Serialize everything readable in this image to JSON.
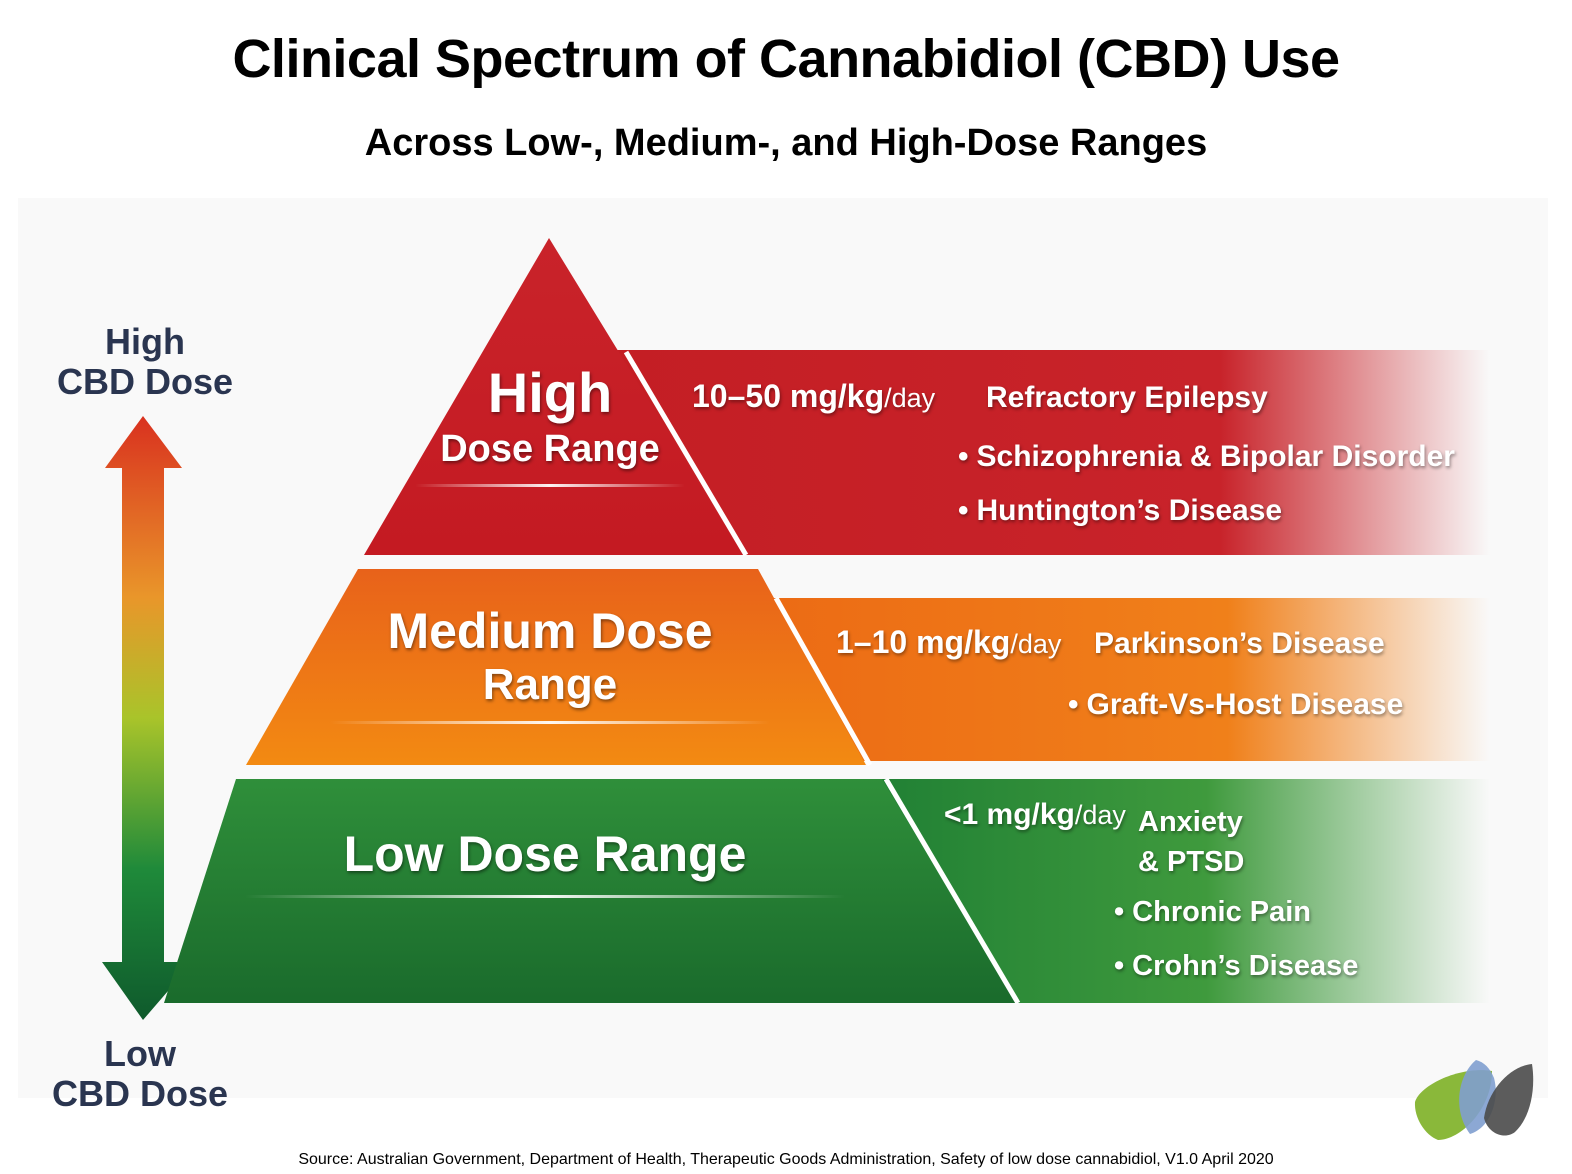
{
  "header": {
    "title": "Clinical Spectrum of Cannabidiol (CBD) Use",
    "subtitle": "Across Low-, Medium-, and High-Dose Ranges"
  },
  "axis": {
    "top_line1": "High",
    "top_line2": "CBD Dose",
    "bottom_line1": "Low",
    "bottom_line2": "CBD Dose",
    "arrow_colors": [
      "#d9311f",
      "#e9962a",
      "#a9c42a",
      "#1f8a3a",
      "#0f5a2c"
    ]
  },
  "tiers": {
    "high": {
      "title_big": "High",
      "title_small": "Dose Range",
      "dose_value": "10–50 mg/kg",
      "dose_unit": "/day",
      "conditions": [
        "Refractory Epilepsy",
        "Schizophrenia & Bipolar Disorder",
        "Huntington’s Disease"
      ],
      "color": "#c41e24"
    },
    "medium": {
      "title_line1": "Medium Dose",
      "title_line2": "Range",
      "dose_value": "1–10 mg/kg",
      "dose_unit": "/day",
      "conditions": [
        "Parkinson’s Disease",
        "Graft-Vs-Host Disease"
      ],
      "color": "#ec6a14"
    },
    "low": {
      "title": "Low Dose Range",
      "dose_value": "<1 mg/kg",
      "dose_unit": "/day",
      "conditions": [
        "Anxiety",
        "& PTSD",
        "Chronic Pain",
        "Crohn’s Disease"
      ],
      "color": "#1f7f34"
    }
  },
  "logo": {
    "colors": [
      "#8ab83a",
      "#7f9fcf",
      "#4a4a4a"
    ]
  },
  "footer": {
    "source": "Source: Australian Government, Department of Health, Therapeutic Goods Administration, Safety of low dose cannabidiol, V1.0 April 2020"
  }
}
